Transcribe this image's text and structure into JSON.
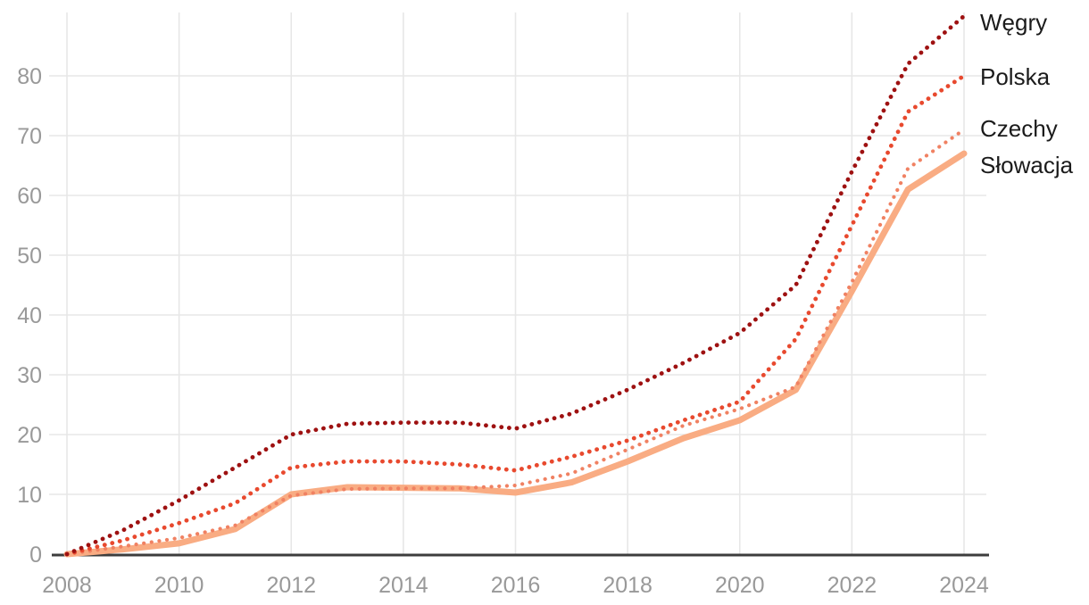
{
  "chart_data": {
    "type": "line",
    "title": "",
    "xlabel": "",
    "ylabel": "",
    "x": [
      2008,
      2009,
      2010,
      2011,
      2012,
      2013,
      2014,
      2015,
      2016,
      2017,
      2018,
      2019,
      2020,
      2021,
      2022,
      2023,
      2024
    ],
    "x_tick_labels": [
      "2008",
      "2010",
      "2012",
      "2014",
      "2016",
      "2018",
      "2020",
      "2022",
      "2024"
    ],
    "x_tick_years": [
      2008,
      2010,
      2012,
      2014,
      2016,
      2018,
      2020,
      2022,
      2024
    ],
    "y_tick_labels": [
      "0",
      "10",
      "20",
      "30",
      "40",
      "50",
      "60",
      "70",
      "80"
    ],
    "y_tick_values": [
      0,
      10,
      20,
      30,
      40,
      50,
      60,
      70,
      80
    ],
    "ylim": [
      0,
      92
    ],
    "grid": true,
    "legend_position": "right-end-labels",
    "series": [
      {
        "name": "Węgry",
        "color": "#9E1111",
        "style": "dotted",
        "width": 4.8,
        "values": [
          0,
          4.0,
          9.0,
          14.5,
          20.0,
          21.8,
          22.0,
          22.0,
          21.0,
          23.5,
          27.5,
          32.0,
          37.0,
          45.0,
          64.0,
          82.0,
          90.0
        ]
      },
      {
        "name": "Polska",
        "color": "#E8492E",
        "style": "dotted",
        "width": 4.8,
        "values": [
          0,
          2.3,
          5.2,
          8.5,
          14.5,
          15.5,
          15.5,
          15.0,
          14.0,
          16.3,
          19.0,
          22.4,
          25.5,
          36.0,
          55.0,
          74.0,
          80.0
        ]
      },
      {
        "name": "Czechy",
        "color": "#F08162",
        "style": "dotted",
        "width": 4.2,
        "values": [
          0,
          1.3,
          2.7,
          4.8,
          9.8,
          10.9,
          11.0,
          11.0,
          11.5,
          13.5,
          17.5,
          21.5,
          24.3,
          28.0,
          45.5,
          64.5,
          71.0
        ]
      },
      {
        "name": "Słowacja",
        "color": "#F9AC83",
        "style": "solid",
        "width": 7,
        "values": [
          0,
          0.8,
          1.8,
          4.2,
          10.0,
          11.2,
          11.1,
          11.0,
          10.3,
          12.0,
          15.5,
          19.4,
          22.4,
          27.5,
          44.0,
          61.0,
          67.0
        ]
      }
    ],
    "colors": {
      "tick_text": "#999999",
      "grid": "#e7e7e7",
      "baseline": "#3d3d3d",
      "series_label_text": "#1b1b1b"
    }
  }
}
